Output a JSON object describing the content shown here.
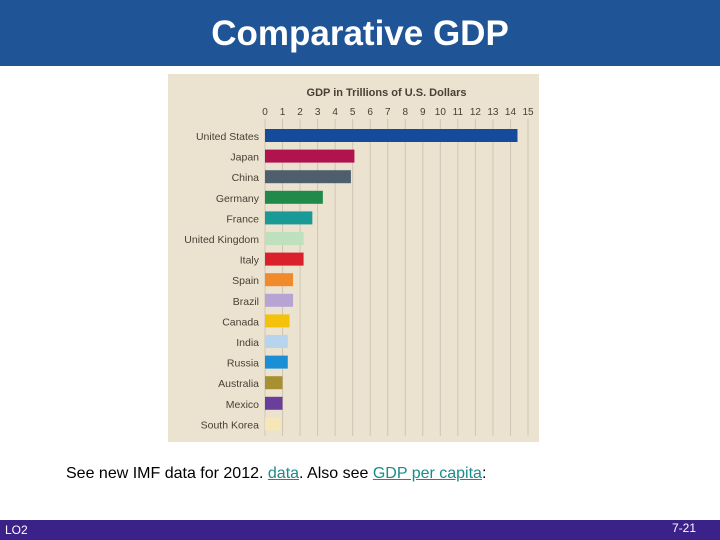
{
  "slide": {
    "title": "Comparative GDP",
    "footer_left": "LO2",
    "page_number": "7-21"
  },
  "footnote": {
    "text_before": "See new IMF data for 2012. ",
    "link1": "data",
    "text_middle": ". Also see ",
    "link2": "GDP per capita",
    "text_after": ":"
  },
  "colors": {
    "title_bar": "#1f5597",
    "bottom_bar": "#3b2289",
    "chart_background": "#ebe2cf",
    "link": "#1a8a8a"
  },
  "chart_data": {
    "type": "bar",
    "orientation": "horizontal",
    "title": "GDP in Trillions of U.S. Dollars",
    "xlim": [
      0,
      15
    ],
    "ticks": [
      0,
      1,
      2,
      3,
      4,
      5,
      6,
      7,
      8,
      9,
      10,
      11,
      12,
      13,
      14,
      15
    ],
    "grid": true,
    "categories": [
      "United States",
      "Japan",
      "China",
      "Germany",
      "France",
      "United Kingdom",
      "Italy",
      "Spain",
      "Brazil",
      "Canada",
      "India",
      "Russia",
      "Australia",
      "Mexico",
      "South Korea"
    ],
    "values": [
      14.4,
      5.1,
      4.9,
      3.3,
      2.7,
      2.2,
      2.2,
      1.6,
      1.6,
      1.4,
      1.3,
      1.3,
      1.0,
      1.0,
      0.9
    ],
    "bar_colors": [
      "#154b9a",
      "#b0134e",
      "#4e5e6c",
      "#1f8a4a",
      "#1a9a96",
      "#bfe0bc",
      "#d9202b",
      "#f08a2a",
      "#b7a4d3",
      "#f4c20d",
      "#b6d4ee",
      "#1a8fd5",
      "#a69032",
      "#6a3f9a",
      "#f7e7b6"
    ]
  }
}
